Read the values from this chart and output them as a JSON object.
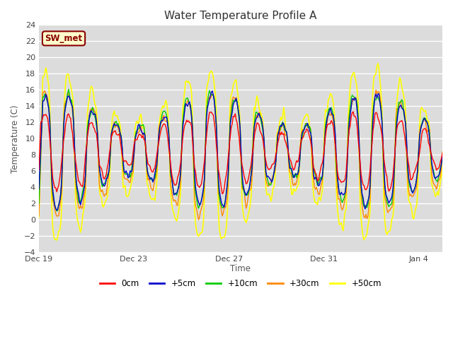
{
  "title": "Water Temperature Profile A",
  "xlabel": "Time",
  "ylabel": "Temperature (C)",
  "ylim": [
    -4,
    24
  ],
  "yticks": [
    -4,
    -2,
    0,
    2,
    4,
    6,
    8,
    10,
    12,
    14,
    16,
    18,
    20,
    22,
    24
  ],
  "legend_labels": [
    "0cm",
    "+5cm",
    "+10cm",
    "+30cm",
    "+50cm"
  ],
  "legend_colors": [
    "#ff0000",
    "#0000cc",
    "#00cc00",
    "#ff8800",
    "#ffff00"
  ],
  "line_widths": [
    1.0,
    1.0,
    1.0,
    1.0,
    1.2
  ],
  "xtick_labels": [
    "Dec 19",
    "Dec 23",
    "Dec 27",
    "Dec 31",
    "Jan 4"
  ],
  "xtick_positions": [
    0,
    4,
    8,
    12,
    16
  ],
  "annotation_text": "SW_met",
  "plot_bg_color": "#dcdcdc",
  "grid_color": "#ffffff",
  "n_days": 17,
  "seed": 7
}
